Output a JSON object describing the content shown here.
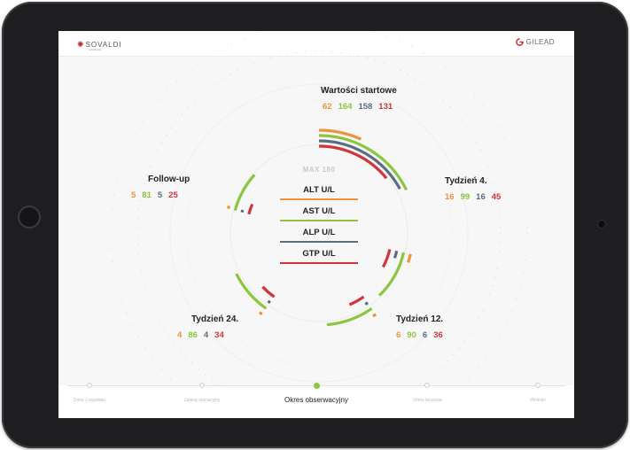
{
  "app": {
    "brand_left": "SOVALDI",
    "brand_left_sub": "sofosbuwir",
    "brand_right": "GILEAD"
  },
  "colors": {
    "alt": "#f0923a",
    "ast": "#8cc63f",
    "alp": "#5a6d82",
    "gtp": "#d2343a"
  },
  "chart_data": {
    "type": "radial-bar",
    "max_label": "MAX 180",
    "max_value": 180,
    "series": [
      {
        "name": "ALT U/L",
        "color": "#f0923a"
      },
      {
        "name": "AST U/L",
        "color": "#8cc63f"
      },
      {
        "name": "ALP U/L",
        "color": "#5a6d82"
      },
      {
        "name": "GTP U/L",
        "color": "#d2343a"
      }
    ],
    "groups": [
      {
        "label": "Wartości startowe",
        "values": [
          62,
          164,
          158,
          131
        ]
      },
      {
        "label": "Tydzień 4.",
        "values": [
          16,
          99,
          16,
          45
        ]
      },
      {
        "label": "Tydzień 12.",
        "values": [
          6,
          90,
          6,
          36
        ]
      },
      {
        "label": "Tydzień 24.",
        "values": [
          4,
          86,
          4,
          34
        ]
      },
      {
        "label": "Follow-up",
        "values": [
          5,
          81,
          5,
          25
        ]
      }
    ]
  },
  "nav": {
    "items": [
      {
        "label": "Dane z wywiadu",
        "active": false
      },
      {
        "label": "Zabieg operacyjny",
        "active": false
      },
      {
        "label": "Okres obserwacyjny",
        "active": true
      },
      {
        "label": "Okres leczenia",
        "active": false
      },
      {
        "label": "Wnioski",
        "active": false
      }
    ]
  }
}
